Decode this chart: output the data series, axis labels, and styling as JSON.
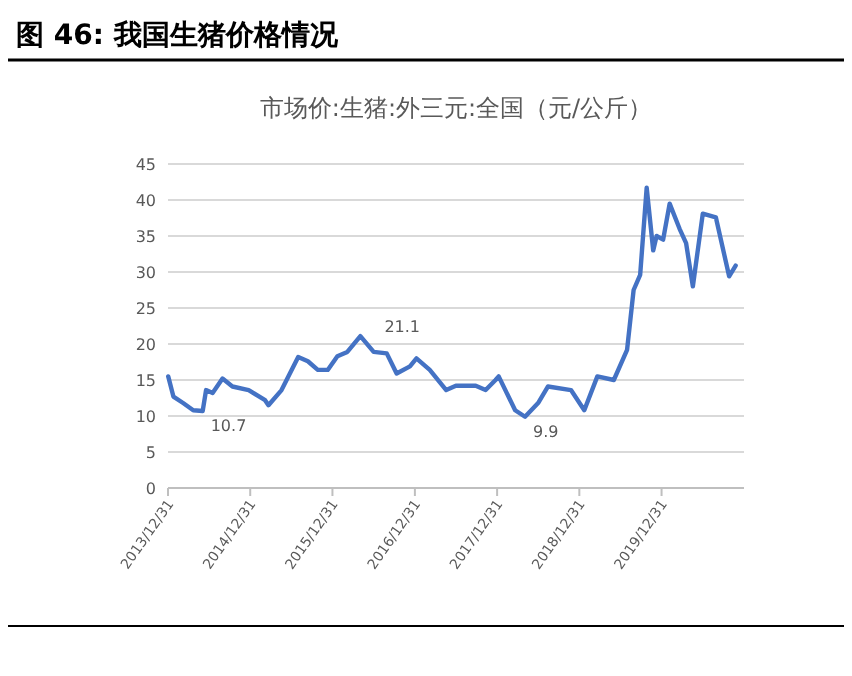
{
  "chart_data": {
    "type": "line",
    "title": "图 46:   我国生猪价格情况",
    "subtitle": "市场价:生猪:外三元:全国（元/公斤）",
    "x": [
      "2014-01-01",
      "2014-01-24",
      "2014-03-08",
      "2014-04-22",
      "2014-06-03",
      "2014-06-18",
      "2014-07-17",
      "2014-08-30",
      "2014-10-13",
      "2014-12-24",
      "2015-03-07",
      "2015-03-22",
      "2015-05-19",
      "2015-08-01",
      "2015-09-13",
      "2015-10-27",
      "2015-12-10",
      "2016-01-22",
      "2016-03-06",
      "2016-05-03",
      "2016-07-01",
      "2016-08-28",
      "2016-10-11",
      "2016-12-09",
      "2017-01-07",
      "2017-03-07",
      "2017-05-19",
      "2017-07-01",
      "2017-09-27",
      "2017-11-10",
      "2017-12-24",
      "2018-01-07",
      "2018-03-21",
      "2018-05-04",
      "2018-07-01",
      "2018-08-14",
      "2018-11-24",
      "2019-01-22",
      "2019-03-21",
      "2019-06-02",
      "2019-07-31",
      "2019-08-29",
      "2019-09-27",
      "2019-10-26",
      "2019-11-24",
      "2019-12-09",
      "2020-01-07",
      "2020-02-05",
      "2020-03-20",
      "2020-04-18",
      "2020-05-18",
      "2020-07-01",
      "2020-08-28",
      "2020-10-26",
      "2020-11-24"
    ],
    "series": [
      {
        "color": "#4472c4",
        "values": [
          15.5,
          12.7,
          11.8,
          10.8,
          10.7,
          13.6,
          13.2,
          15.2,
          14.1,
          13.6,
          12.2,
          11.5,
          13.6,
          18.2,
          17.6,
          16.4,
          16.4,
          18.3,
          18.9,
          21.1,
          18.9,
          18.7,
          15.9,
          16.9,
          18.0,
          16.4,
          13.6,
          14.2,
          14.2,
          13.6,
          15.0,
          15.5,
          10.8,
          9.9,
          11.8,
          14.1,
          13.6,
          10.8,
          15.5,
          15.0,
          19.2,
          27.5,
          29.6,
          41.7,
          33.0,
          35.0,
          34.5,
          39.5,
          36.0,
          34.0,
          28.0,
          38.1,
          37.6,
          29.4,
          30.9
        ]
      }
    ],
    "xlim": [
      "2013-12-31",
      "2020-12-31"
    ],
    "xticks": [
      {
        "value": "2013-12-31",
        "label": "2013/12/31"
      },
      {
        "value": "2014-12-31",
        "label": "2014/12/31"
      },
      {
        "value": "2015-12-31",
        "label": "2015/12/31"
      },
      {
        "value": "2016-12-31",
        "label": "2016/12/31"
      },
      {
        "value": "2017-12-31",
        "label": "2017/12/31"
      },
      {
        "value": "2018-12-31",
        "label": "2018/12/31"
      },
      {
        "value": "2019-12-31",
        "label": "2019/12/31"
      }
    ],
    "ylim": [
      0,
      45
    ],
    "yticks": [
      0,
      5,
      10,
      15,
      20,
      25,
      30,
      35,
      40,
      45
    ],
    "grid": "y",
    "annotations": [
      {
        "text": "10.7",
        "x": "2014-06-03",
        "y": 10.7
      },
      {
        "text": "21.1",
        "x": "2016-05-03",
        "y": 21.1
      },
      {
        "text": "9.9",
        "x": "2018-05-04",
        "y": 9.9
      }
    ]
  }
}
